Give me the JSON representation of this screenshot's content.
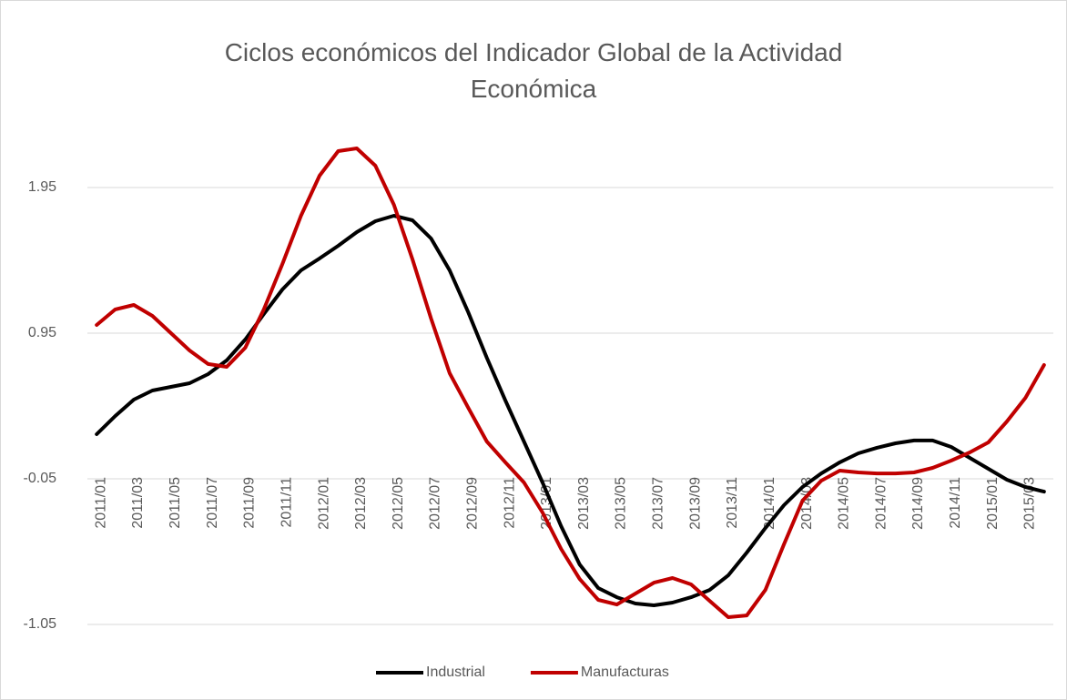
{
  "chart_data": {
    "type": "line",
    "title": "Ciclos económicos del Indicador Global de la Actividad Económica",
    "categories": [
      "2011/01",
      null,
      "2011/03",
      null,
      "2011/05",
      null,
      "2011/07",
      null,
      "2011/09",
      null,
      "2011/11",
      null,
      "2012/01",
      null,
      "2012/03",
      null,
      "2012/05",
      null,
      "2012/07",
      null,
      "2012/09",
      null,
      "2012/11",
      null,
      "2013/01",
      null,
      "2013/03",
      null,
      "2013/05",
      null,
      "2013/07",
      null,
      "2013/09",
      null,
      "2013/11",
      null,
      "2014/01",
      null,
      "2014/03",
      null,
      "2014/05",
      null,
      "2014/07",
      null,
      "2014/09",
      null,
      "2014/11",
      null,
      "2015/01",
      null,
      "2015/03",
      null
    ],
    "series": [
      {
        "name": "Industrial",
        "color": "#000000",
        "values": [
          0.256,
          0.381,
          0.494,
          0.556,
          0.581,
          0.606,
          0.669,
          0.763,
          0.906,
          1.081,
          1.25,
          1.381,
          1.463,
          1.55,
          1.644,
          1.719,
          1.756,
          1.725,
          1.6,
          1.381,
          1.094,
          0.781,
          0.488,
          0.206,
          -0.075,
          -0.375,
          -0.638,
          -0.8,
          -0.863,
          -0.906,
          -0.919,
          -0.9,
          -0.863,
          -0.813,
          -0.713,
          -0.556,
          -0.388,
          -0.231,
          -0.106,
          -0.013,
          0.063,
          0.125,
          0.163,
          0.194,
          0.213,
          0.213,
          0.169,
          0.094,
          0.019,
          -0.056,
          -0.106,
          -0.138
        ]
      },
      {
        "name": "Manufacturas",
        "color": "#c00000",
        "values": [
          1.006,
          1.113,
          1.144,
          1.069,
          0.95,
          0.831,
          0.738,
          0.719,
          0.85,
          1.113,
          1.425,
          1.756,
          2.031,
          2.2,
          2.219,
          2.1,
          1.831,
          1.456,
          1.05,
          0.675,
          0.438,
          0.206,
          0.063,
          -0.075,
          -0.281,
          -0.531,
          -0.738,
          -0.881,
          -0.913,
          -0.838,
          -0.763,
          -0.731,
          -0.775,
          -0.888,
          -1.0,
          -0.988,
          -0.813,
          -0.5,
          -0.2,
          -0.063,
          0.006,
          -0.006,
          -0.013,
          -0.013,
          -0.006,
          0.025,
          0.075,
          0.131,
          0.2,
          0.344,
          0.506,
          0.731
        ]
      }
    ],
    "ylim": [
      -1.05,
      2.4
    ],
    "yticks": [
      1.95,
      0.95,
      -0.05,
      -1.05
    ],
    "grid": true,
    "legend": "bottom"
  }
}
